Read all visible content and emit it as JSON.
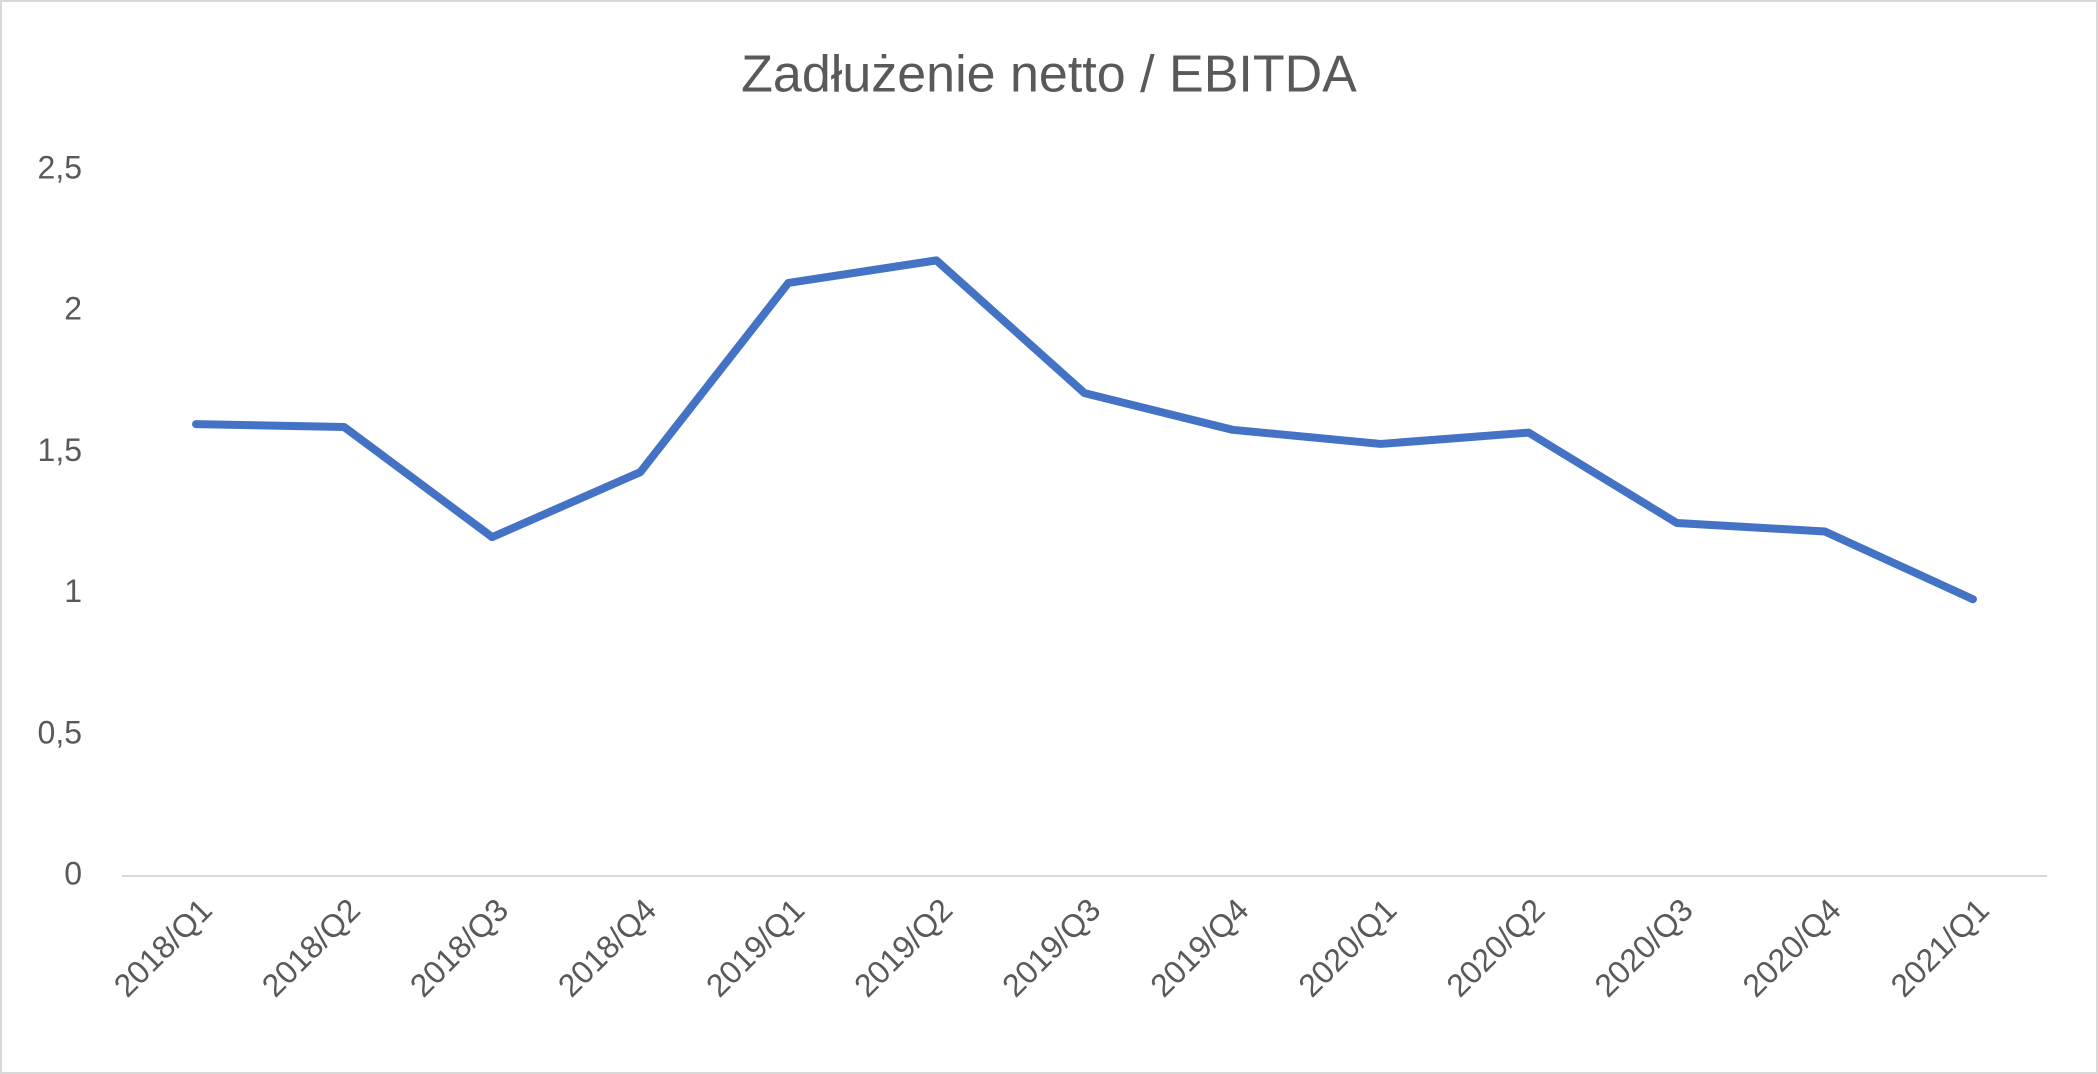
{
  "chart_data": {
    "type": "line",
    "title": "Zadłużenie netto / EBITDA",
    "categories": [
      "2018/Q1",
      "2018/Q2",
      "2018/Q3",
      "2018/Q4",
      "2019/Q1",
      "2019/Q2",
      "2019/Q3",
      "2019/Q4",
      "2020/Q1",
      "2020/Q2",
      "2020/Q3",
      "2020/Q4",
      "2021/Q1"
    ],
    "values": [
      1.6,
      1.59,
      1.2,
      1.43,
      2.1,
      2.18,
      1.71,
      1.58,
      1.53,
      1.57,
      1.25,
      1.22,
      0.98
    ],
    "color": "#4472c4",
    "ylim": [
      0,
      2.5
    ],
    "yticks": [
      0,
      {
        "value": 0.5,
        "label": "0,5"
      },
      1,
      {
        "value": 1.5,
        "label": "1,5"
      },
      2,
      {
        "value": 2.5,
        "label": "2,5"
      }
    ],
    "grid": false
  }
}
